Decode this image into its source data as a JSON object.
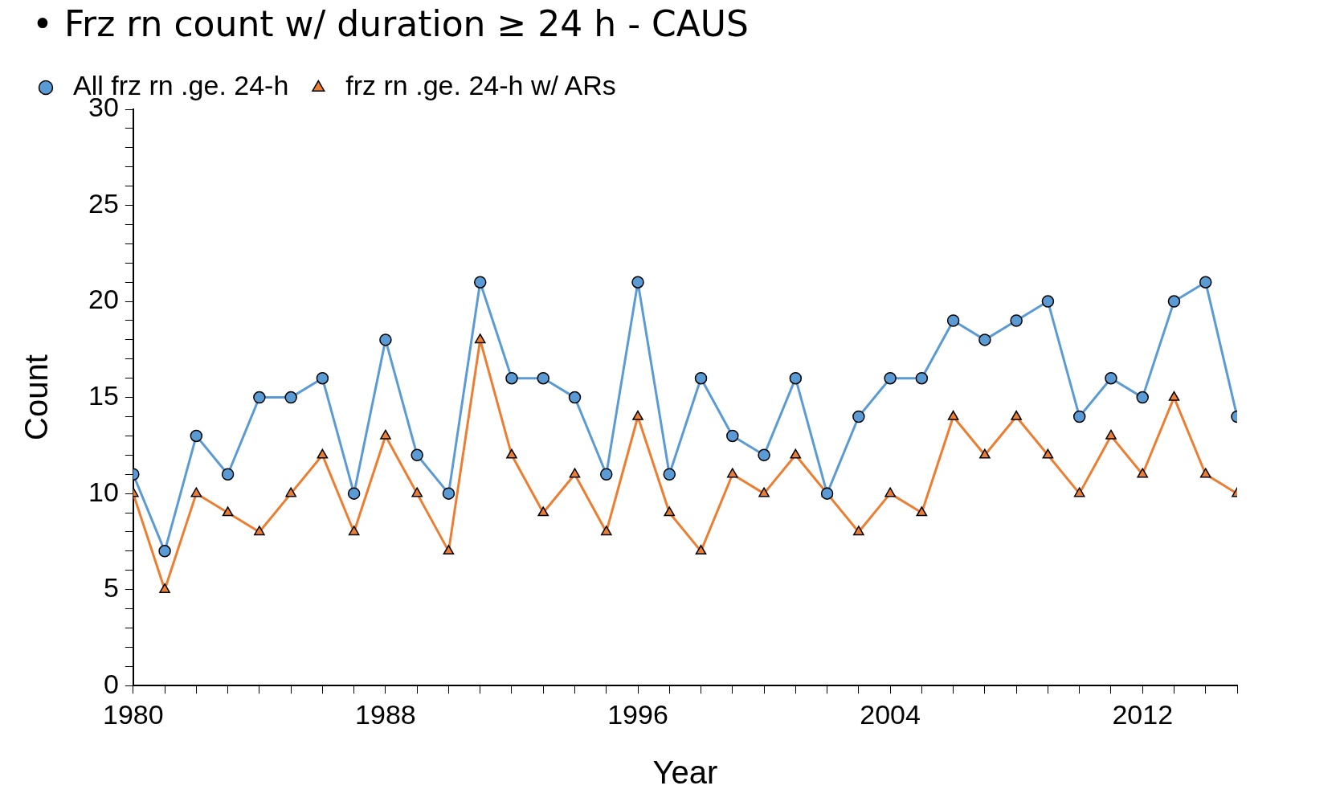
{
  "chart_data": {
    "type": "line",
    "title": "• Frz rn count w/ duration ≥ 24 h - CAUS",
    "xlabel": "Year",
    "ylabel": "Count",
    "x": [
      1980,
      1981,
      1982,
      1983,
      1984,
      1985,
      1986,
      1987,
      1988,
      1989,
      1990,
      1991,
      1992,
      1993,
      1994,
      1995,
      1996,
      1997,
      1998,
      1999,
      2000,
      2001,
      2002,
      2003,
      2004,
      2005,
      2006,
      2007,
      2008,
      2009,
      2010,
      2011,
      2012,
      2013,
      2014,
      2015
    ],
    "series": [
      {
        "name": "All frz rn .ge. 24-h",
        "color": "#5b9bd5",
        "marker": "circle",
        "values": [
          11,
          7,
          13,
          11,
          15,
          15,
          16,
          10,
          18,
          12,
          10,
          21,
          16,
          16,
          15,
          11,
          21,
          11,
          16,
          13,
          12,
          16,
          10,
          14,
          16,
          16,
          19,
          18,
          19,
          20,
          14,
          16,
          15,
          20,
          21,
          14
        ]
      },
      {
        "name": "frz rn .ge. 24-h w/ ARs",
        "color": "#ed7d31",
        "marker": "triangle",
        "values": [
          10,
          5,
          10,
          9,
          8,
          10,
          12,
          8,
          13,
          10,
          7,
          18,
          12,
          9,
          11,
          8,
          14,
          9,
          7,
          11,
          10,
          12,
          10,
          8,
          10,
          9,
          14,
          12,
          14,
          12,
          10,
          13,
          11,
          15,
          11,
          10
        ]
      }
    ],
    "xlim": [
      1980,
      2015
    ],
    "xticks": [
      1980,
      {
        "value": 1981,
        "label": null
      },
      {
        "value": 1982,
        "label": null
      },
      {
        "value": 1983,
        "label": null
      },
      {
        "value": 1984,
        "label": null
      },
      {
        "value": 1985,
        "label": null
      },
      {
        "value": 1986,
        "label": null
      },
      {
        "value": 1987,
        "label": null
      },
      1988,
      {
        "value": 1989,
        "label": null
      },
      {
        "value": 1990,
        "label": null
      },
      {
        "value": 1991,
        "label": null
      },
      {
        "value": 1992,
        "label": null
      },
      {
        "value": 1993,
        "label": null
      },
      {
        "value": 1994,
        "label": null
      },
      {
        "value": 1995,
        "label": null
      },
      1996,
      {
        "value": 1997,
        "label": null
      },
      {
        "value": 1998,
        "label": null
      },
      {
        "value": 1999,
        "label": null
      },
      {
        "value": 2000,
        "label": null
      },
      {
        "value": 2001,
        "label": null
      },
      {
        "value": 2002,
        "label": null
      },
      {
        "value": 2003,
        "label": null
      },
      2004,
      {
        "value": 2005,
        "label": null
      },
      {
        "value": 2006,
        "label": null
      },
      {
        "value": 2007,
        "label": null
      },
      {
        "value": 2008,
        "label": null
      },
      {
        "value": 2009,
        "label": null
      },
      {
        "value": 2010,
        "label": null
      },
      {
        "value": 2011,
        "label": null
      },
      2012,
      {
        "value": 2013,
        "label": null
      },
      {
        "value": 2014,
        "label": null
      },
      {
        "value": 2015,
        "label": null
      }
    ],
    "ylim": [
      0,
      30
    ],
    "yticks": [
      0,
      {
        "value": 1,
        "label": null
      },
      {
        "value": 2,
        "label": null
      },
      {
        "value": 3,
        "label": null
      },
      {
        "value": 4,
        "label": null
      },
      5,
      {
        "value": 6,
        "label": null
      },
      {
        "value": 7,
        "label": null
      },
      {
        "value": 8,
        "label": null
      },
      {
        "value": 9,
        "label": null
      },
      10,
      {
        "value": 11,
        "label": null
      },
      {
        "value": 12,
        "label": null
      },
      {
        "value": 13,
        "label": null
      },
      {
        "value": 14,
        "label": null
      },
      15,
      {
        "value": 16,
        "label": null
      },
      {
        "value": 17,
        "label": null
      },
      {
        "value": 18,
        "label": null
      },
      {
        "value": 19,
        "label": null
      },
      20,
      {
        "value": 21,
        "label": null
      },
      {
        "value": 22,
        "label": null
      },
      {
        "value": 23,
        "label": null
      },
      {
        "value": 24,
        "label": null
      },
      25,
      {
        "value": 26,
        "label": null
      },
      {
        "value": 27,
        "label": null
      },
      {
        "value": 28,
        "label": null
      },
      {
        "value": 29,
        "label": null
      },
      30
    ],
    "grid": false,
    "legend": "top left",
    "line_style": "solid"
  }
}
